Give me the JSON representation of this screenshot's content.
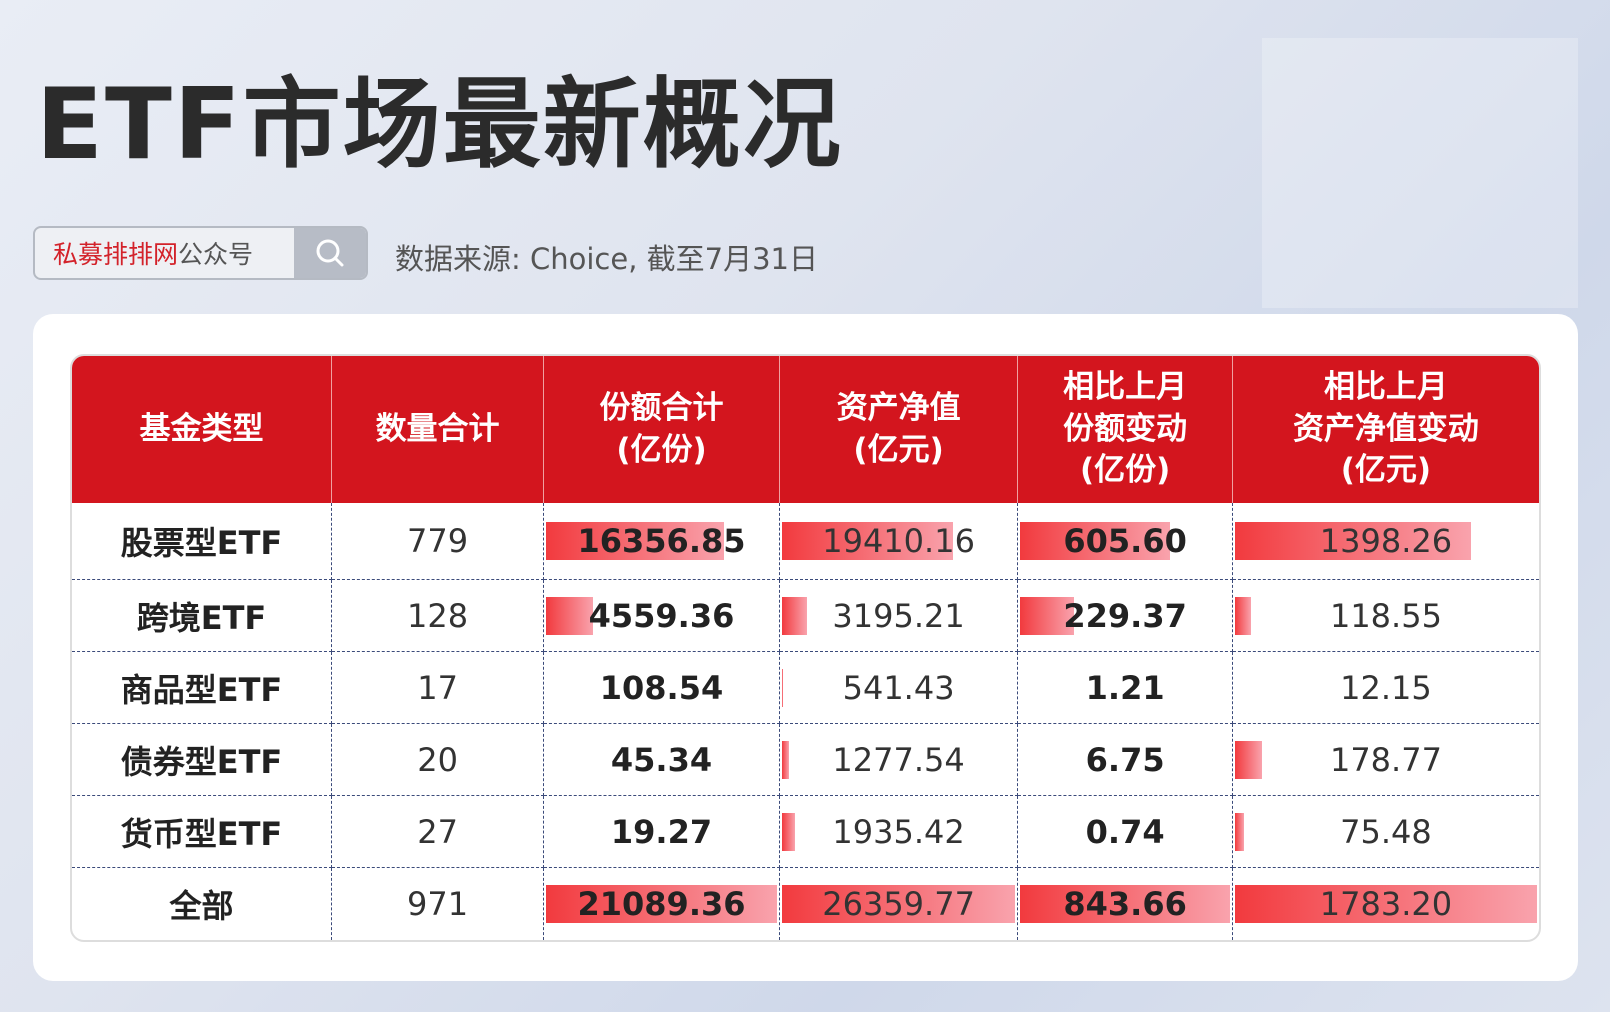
{
  "title": "ETF市场最新概况",
  "search": {
    "brand": "私募排排网",
    "suffix": "公众号",
    "icon": "search-icon"
  },
  "source": "数据来源: Choice, 截至7月31日",
  "table": {
    "headers": [
      "基金类型",
      "数量合计",
      "份额合计\n(亿份)",
      "资产净值\n(亿元)",
      "相比上月\n份额变动\n(亿份)",
      "相比上月\n资产净值变动\n(亿元)"
    ],
    "rows": [
      [
        "股票型ETF",
        "779",
        "16356.85",
        "19410.16",
        "605.60",
        "1398.26"
      ],
      [
        "跨境ETF",
        "128",
        "4559.36",
        "3195.21",
        "229.37",
        "118.55"
      ],
      [
        "商品型ETF",
        "17",
        "108.54",
        "541.43",
        "1.21",
        "12.15"
      ],
      [
        "债券型ETF",
        "20",
        "45.34",
        "1277.54",
        "6.75",
        "178.77"
      ],
      [
        "货币型ETF",
        "27",
        "19.27",
        "1935.42",
        "0.74",
        "75.48"
      ],
      [
        "全部",
        "971",
        "21089.36",
        "26359.77",
        "843.66",
        "1783.20"
      ]
    ],
    "bar_color": "#f23a3e",
    "header_color": "#d3151e"
  }
}
